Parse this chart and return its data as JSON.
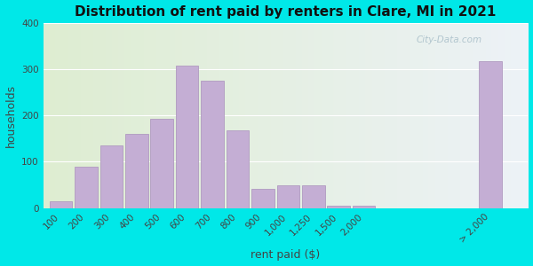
{
  "title": "Distribution of rent paid by renters in Clare, MI in 2021",
  "xlabel": "rent paid ($)",
  "ylabel": "households",
  "bar_color": "#c4aed4",
  "bar_edge_color": "#b09ac0",
  "background_outer": "#00e8e8",
  "ylim": [
    0,
    400
  ],
  "yticks": [
    0,
    100,
    200,
    300,
    400
  ],
  "categories": [
    "100",
    "200",
    "300",
    "400",
    "500",
    "600",
    "700",
    "800",
    "900",
    "1,000",
    "1,250",
    "1,500",
    "2,000",
    "> 2,000"
  ],
  "values": [
    15,
    90,
    135,
    160,
    192,
    308,
    275,
    168,
    42,
    50,
    50,
    5,
    5,
    318
  ],
  "x_positions": [
    0,
    1,
    2,
    3,
    4,
    5,
    6,
    7,
    8,
    9,
    10,
    11,
    12,
    17
  ],
  "watermark": "City-Data.com",
  "title_fontsize": 11,
  "axis_label_fontsize": 9,
  "tick_fontsize": 7.5
}
